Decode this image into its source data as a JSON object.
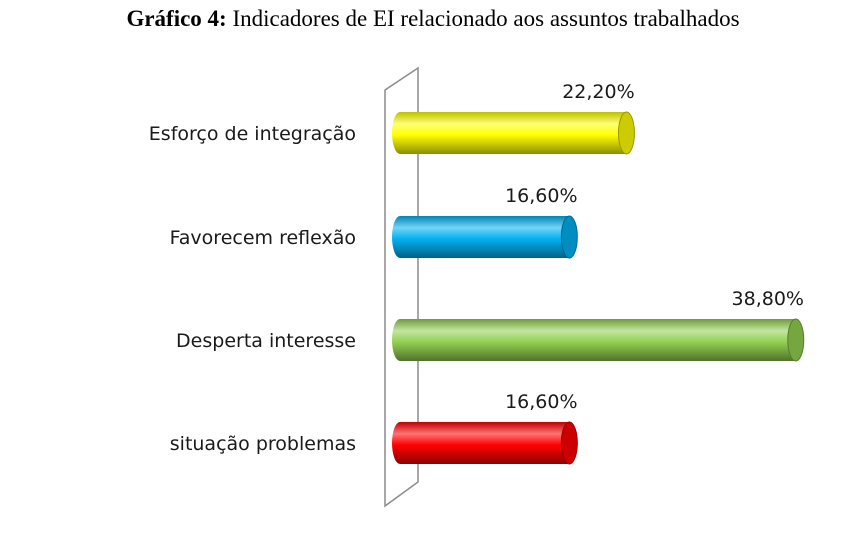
{
  "title_lead": "Gráfico  4:",
  "title_rest": "Indicadores de EI relacionado aos assuntos trabalhados",
  "chart_data": {
    "type": "bar",
    "orientation": "horizontal",
    "categories": [
      "Esforço de integração",
      "Favorecem reflexão",
      "Desperta interesse",
      "situação problemas"
    ],
    "values": [
      22.2,
      16.6,
      38.8,
      16.6
    ],
    "value_labels": [
      "22,20%",
      "16,60%",
      "38,80%",
      "16,60%"
    ],
    "colors": [
      "#ffff00",
      "#00b0f0",
      "#92d050",
      "#ff0000"
    ],
    "xlim": [
      0,
      40
    ],
    "grid": false,
    "legend": "none"
  }
}
